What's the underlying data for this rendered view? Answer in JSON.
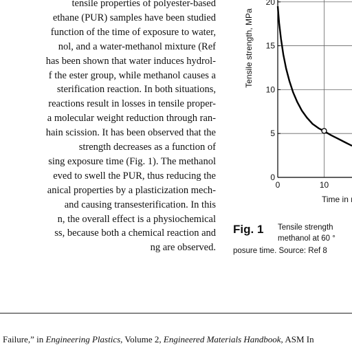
{
  "body_text": {
    "lines": [
      "tensile properties of polyester-based",
      "ethane (PUR) samples have been studied",
      "function of the time of exposure to water,",
      "nol, and a water-methanol mixture (Ref",
      "has been shown that water induces hydrol-",
      "f the ester group, while methanol causes a",
      "sterification reaction. In both situations,",
      "reactions result in losses in tensile proper-",
      "a molecular weight reduction through ran-",
      "hain scission. It has been observed that the",
      "strength decreases as a function of",
      "sing exposure time (Fig. 1). The methanol",
      "eved to swell the PUR, thus reducing the",
      "anical properties by a plasticization mech-",
      "and causing transesterification. In this",
      "n, the overall effect is a physiochemical",
      "ss, because both a chemical reaction and",
      "ng are observed."
    ]
  },
  "chart_data": {
    "type": "line",
    "title": "",
    "xlabel": "Time in me",
    "ylabel": "Tensile strength, MPa",
    "x_ticks": [
      "0",
      "10"
    ],
    "y_ticks": [
      "0",
      "5",
      "10",
      "15",
      "20"
    ],
    "xlim": [
      0,
      16
    ],
    "ylim": [
      0,
      21
    ],
    "grid": true,
    "series": [
      {
        "x": [
          0,
          0.3,
          0.7,
          1.2,
          1.8,
          2.5,
          3.3,
          4.2,
          5.2,
          6.3,
          7.5,
          8.8,
          10.2,
          11.5,
          13,
          14.5,
          16
        ],
        "y": [
          19.5,
          17.6,
          15.8,
          14,
          12.4,
          11,
          9.7,
          8.6,
          7.6,
          6.8,
          6.1,
          5.6,
          5.2,
          4.8,
          4.4,
          4.0,
          3.6
        ]
      }
    ],
    "markers": [
      {
        "x": 10,
        "y": 5.3
      }
    ]
  },
  "caption": {
    "label": "Fig. 1",
    "line1": "Tensile    strength",
    "line2": "methanol at 60 °",
    "line3": "posure time. Source: Ref 8"
  },
  "footnote": {
    "pre": "Failure,” in ",
    "book": "Engineering Plastics",
    "mid": ", Volume 2, ",
    "series": "Engineered Materials Handbook",
    "post": ", ASM In"
  }
}
